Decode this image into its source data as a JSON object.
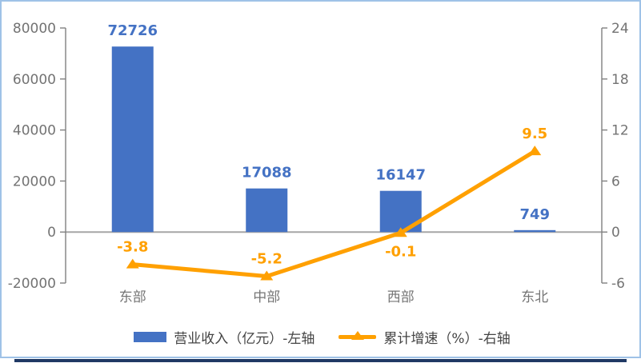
{
  "frame": {
    "border_color": "#9FC2E7",
    "bottom_bar_color": "#1F3864",
    "background": "#FFFFFF"
  },
  "chart_data": {
    "type": "bar+line combo",
    "categories": [
      "东部",
      "中部",
      "西部",
      "东北"
    ],
    "series": [
      {
        "name": "营业收入（亿元）-左轴",
        "type": "bar",
        "axis": "left",
        "color": "#4472C4",
        "label_color": "#4472C4",
        "values": [
          72726,
          17088,
          16147,
          749
        ],
        "data_labels": [
          "72726",
          "17088",
          "16147",
          "749"
        ]
      },
      {
        "name": "累计增速（%）-右轴",
        "type": "line",
        "axis": "right",
        "color": "#FFA000",
        "label_color": "#FFA000",
        "marker": "triangle-up",
        "values": [
          -3.8,
          -5.2,
          -0.1,
          9.5
        ],
        "data_labels": [
          "-3.8",
          "-5.2",
          "-0.1",
          "9.5"
        ]
      }
    ],
    "left_axis": {
      "min": -20000,
      "max": 80000,
      "ticks": [
        80000,
        60000,
        40000,
        20000,
        0,
        -20000
      ],
      "tick_labels": [
        "80000",
        "60000",
        "40000",
        "20000",
        "0",
        "-20000"
      ]
    },
    "right_axis": {
      "min": -6,
      "max": 24,
      "ticks": [
        24,
        18,
        12,
        6,
        0,
        -6
      ],
      "tick_labels": [
        "24",
        "18",
        "12",
        "6",
        "0",
        "-6"
      ]
    },
    "title": "",
    "grid": false,
    "legend_position": "bottom",
    "axis_line_color": "#808080",
    "zero_line_color": "#A6A6A6",
    "tick_label_color": "#737373",
    "category_label_color": "#757575"
  },
  "legend": {
    "bar_label": "营业收入（亿元）-左轴",
    "line_label": "累计增速（%）-右轴"
  }
}
